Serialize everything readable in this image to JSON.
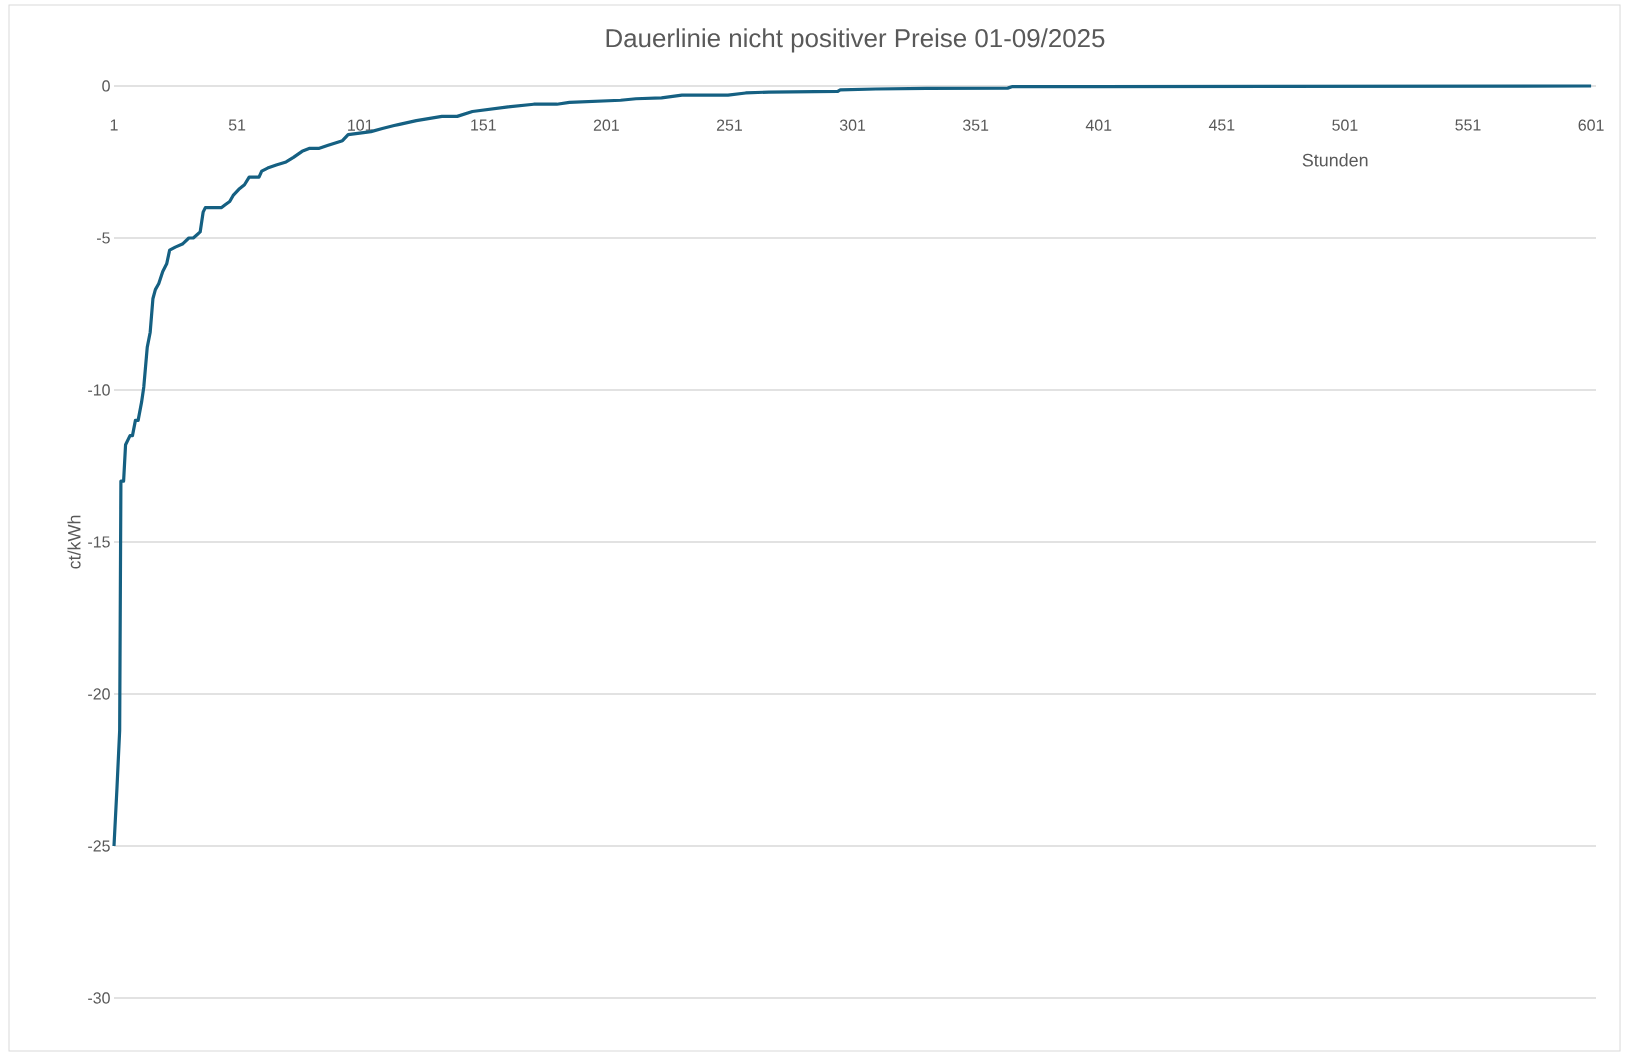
{
  "chart_data": {
    "type": "line",
    "title": "Dauerlinie nicht positiver Preise 01-09/2025",
    "xlabel": "Stunden",
    "ylabel": "ct/kWh",
    "x": [
      1,
      2.2,
      3.3,
      3.8,
      4.9,
      5.7,
      7.5,
      8.5,
      9.7,
      10.8,
      12.2,
      13.1,
      14.5,
      15.7,
      16.8,
      17.8,
      19.2,
      20.8,
      22.4,
      23.6,
      25.9,
      28.8,
      31.4,
      33.2,
      34.6,
      36,
      37.2,
      38.1,
      44.7,
      46.3,
      48,
      49.4,
      51.7,
      54,
      55.9,
      59.9,
      61,
      63.4,
      66.9,
      70.9,
      73.9,
      77.4,
      80.5,
      84.4,
      88,
      93.8,
      96.1,
      100.8,
      105.4,
      110,
      114.8,
      116.5,
      123.8,
      134.2,
      140.4,
      146.6,
      161.1,
      171.5,
      180.9,
      186,
      206.8,
      213,
      223.4,
      231.7,
      250.4,
      257.6,
      267,
      295,
      296,
      310.5,
      331,
      364,
      366,
      400,
      601
    ],
    "values": [
      -25,
      -23.1,
      -21.2,
      -13,
      -13,
      -11.8,
      -11.5,
      -11.5,
      -11,
      -11,
      -10.4,
      -9.9,
      -8.6,
      -8.1,
      -7,
      -6.7,
      -6.5,
      -6.1,
      -5.85,
      -5.4,
      -5.3,
      -5.2,
      -5,
      -5,
      -4.9,
      -4.8,
      -4.15,
      -4,
      -4,
      -3.9,
      -3.8,
      -3.6,
      -3.4,
      -3.25,
      -3,
      -3,
      -2.8,
      -2.7,
      -2.6,
      -2.5,
      -2.35,
      -2.15,
      -2.05,
      -2.05,
      -1.95,
      -1.8,
      -1.6,
      -1.55,
      -1.5,
      -1.4,
      -1.3,
      -1.27,
      -1.14,
      -1,
      -1,
      -0.84,
      -0.69,
      -0.6,
      -0.6,
      -0.54,
      -0.47,
      -0.42,
      -0.39,
      -0.3,
      -0.3,
      -0.23,
      -0.2,
      -0.18,
      -0.13,
      -0.1,
      -0.08,
      -0.07,
      -0.02,
      -0.02,
      0
    ],
    "color": "#156082",
    "xlim": [
      1,
      603
    ],
    "ylim": [
      -30,
      0
    ],
    "xticks": [
      1,
      51,
      101,
      151,
      201,
      251,
      301,
      351,
      401,
      451,
      501,
      551,
      601
    ],
    "yticks": [
      -30,
      -25,
      -20,
      -15,
      -10,
      -5,
      0
    ],
    "grid": "y"
  }
}
